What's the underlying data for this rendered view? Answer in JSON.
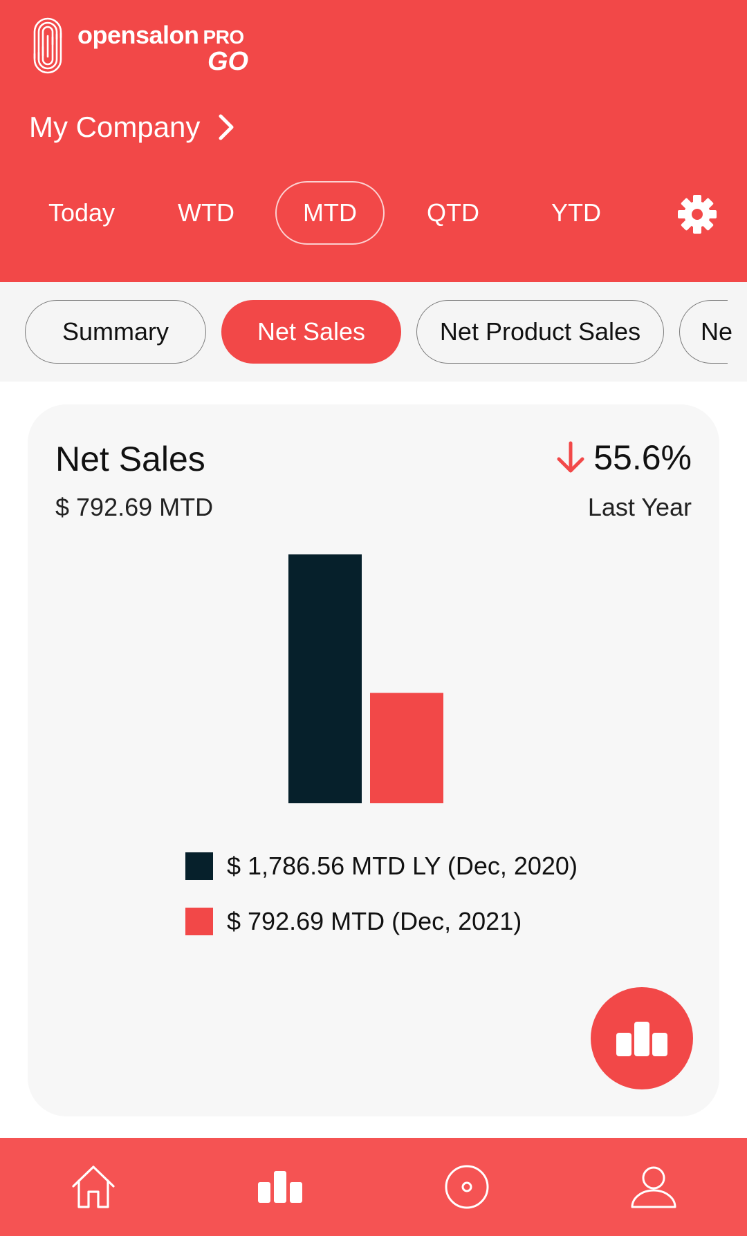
{
  "header": {
    "logo_text": "opensalon",
    "logo_pro": "PRO",
    "logo_go": "GO",
    "company": "My Company"
  },
  "period_tabs": [
    {
      "label": "Today",
      "active": false
    },
    {
      "label": "WTD",
      "active": false
    },
    {
      "label": "MTD",
      "active": true
    },
    {
      "label": "QTD",
      "active": false
    },
    {
      "label": "YTD",
      "active": false
    }
  ],
  "category_chips": [
    {
      "label": "Summary",
      "active": false
    },
    {
      "label": "Net Sales",
      "active": true
    },
    {
      "label": "Net Product Sales",
      "active": false
    },
    {
      "label": "Ne",
      "active": false
    }
  ],
  "card": {
    "title": "Net Sales",
    "subtitle": "$ 792.69 MTD",
    "change": "55.6%",
    "change_direction": "down",
    "compare_label": "Last Year"
  },
  "chart_data": {
    "type": "bar",
    "categories": [
      "Dec, 2020",
      "Dec, 2021"
    ],
    "values": [
      1786.56,
      792.69
    ],
    "colors": [
      "#06202b",
      "#f24848"
    ],
    "legend": [
      "$ 1,786.56 MTD LY (Dec, 2020)",
      "$ 792.69 MTD (Dec, 2021)"
    ]
  },
  "colors": {
    "brand": "#f24848",
    "dark": "#06202b",
    "nav": "#f55353"
  },
  "bottom_nav": [
    "home-icon",
    "bar-chart-icon",
    "target-icon",
    "user-icon"
  ]
}
